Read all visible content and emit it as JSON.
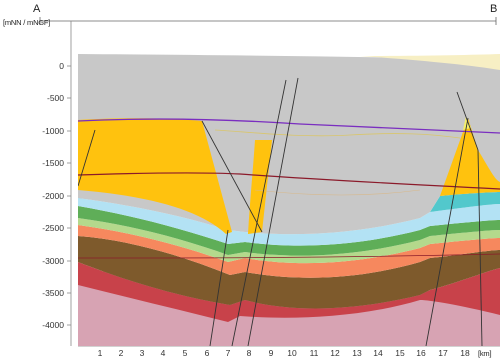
{
  "section": {
    "start_label": "A",
    "end_label": "B",
    "y_unit_label": "[mNN / mNGF]",
    "x_unit_label": "[km]"
  },
  "y_ticks": [
    {
      "value": 0,
      "label": "0"
    },
    {
      "value": -500,
      "label": "-500"
    },
    {
      "value": -1000,
      "label": "-1000"
    },
    {
      "value": -1500,
      "label": "-1500"
    },
    {
      "value": -2000,
      "label": "-2000"
    },
    {
      "value": -2500,
      "label": "-2500"
    },
    {
      "value": -3000,
      "label": "-3000"
    },
    {
      "value": -3500,
      "label": "-3500"
    },
    {
      "value": -4000,
      "label": "-4000"
    }
  ],
  "x_ticks": [
    "1",
    "2",
    "3",
    "4",
    "5",
    "6",
    "7",
    "8",
    "9",
    "10",
    "11",
    "12",
    "13",
    "14",
    "15",
    "16",
    "17",
    "18"
  ],
  "colors": {
    "pale_yellow_top": "#f7efc4",
    "grey_overburden": "#c8c8c8",
    "salt_orange": "#ffc20e",
    "cyan": "#52c8cc",
    "light_blue": "#b3e2f4",
    "green": "#5fae58",
    "light_green": "#b4d98c",
    "salmon": "#f6885e",
    "brown": "#7e5a2c",
    "red": "#c8424a",
    "pink_basement": "#d7a3b3",
    "purple_line": "#7a2ec0",
    "dark_red_line": "#8b1a2a",
    "fault_line": "#333333"
  }
}
